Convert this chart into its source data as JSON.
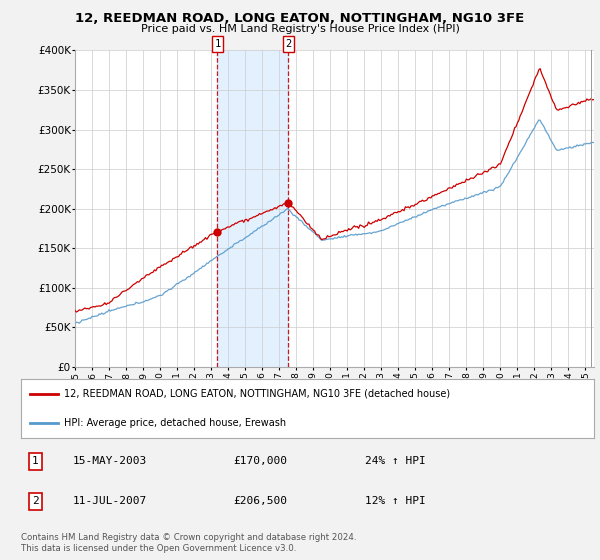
{
  "title": "12, REEDMAN ROAD, LONG EATON, NOTTINGHAM, NG10 3FE",
  "subtitle": "Price paid vs. HM Land Registry's House Price Index (HPI)",
  "ylim": [
    0,
    400000
  ],
  "yticks": [
    0,
    50000,
    100000,
    150000,
    200000,
    250000,
    300000,
    350000,
    400000
  ],
  "ytick_labels": [
    "£0",
    "£50K",
    "£100K",
    "£150K",
    "£200K",
    "£250K",
    "£300K",
    "£350K",
    "£400K"
  ],
  "sale1_date": "15-MAY-2003",
  "sale1_price": 170000,
  "sale1_x": 2003.37,
  "sale1_hpi": "24% ↑ HPI",
  "sale2_date": "11-JUL-2007",
  "sale2_price": 206500,
  "sale2_x": 2007.54,
  "sale2_hpi": "12% ↑ HPI",
  "legend_label1": "12, REEDMAN ROAD, LONG EATON, NOTTINGHAM, NG10 3FE (detached house)",
  "legend_label2": "HPI: Average price, detached house, Erewash",
  "footer": "Contains HM Land Registry data © Crown copyright and database right 2024.\nThis data is licensed under the Open Government Licence v3.0.",
  "line1_color": "#cc0000",
  "line2_color": "#5599cc",
  "shade_color": "#ddeeff",
  "background_color": "#f2f2f2",
  "plot_bg_color": "#ffffff",
  "sale_marker_color": "#cc0000",
  "vline_color": "#cc0000",
  "grid_color": "#cccccc",
  "xmin": 1995,
  "xmax": 2025.5
}
